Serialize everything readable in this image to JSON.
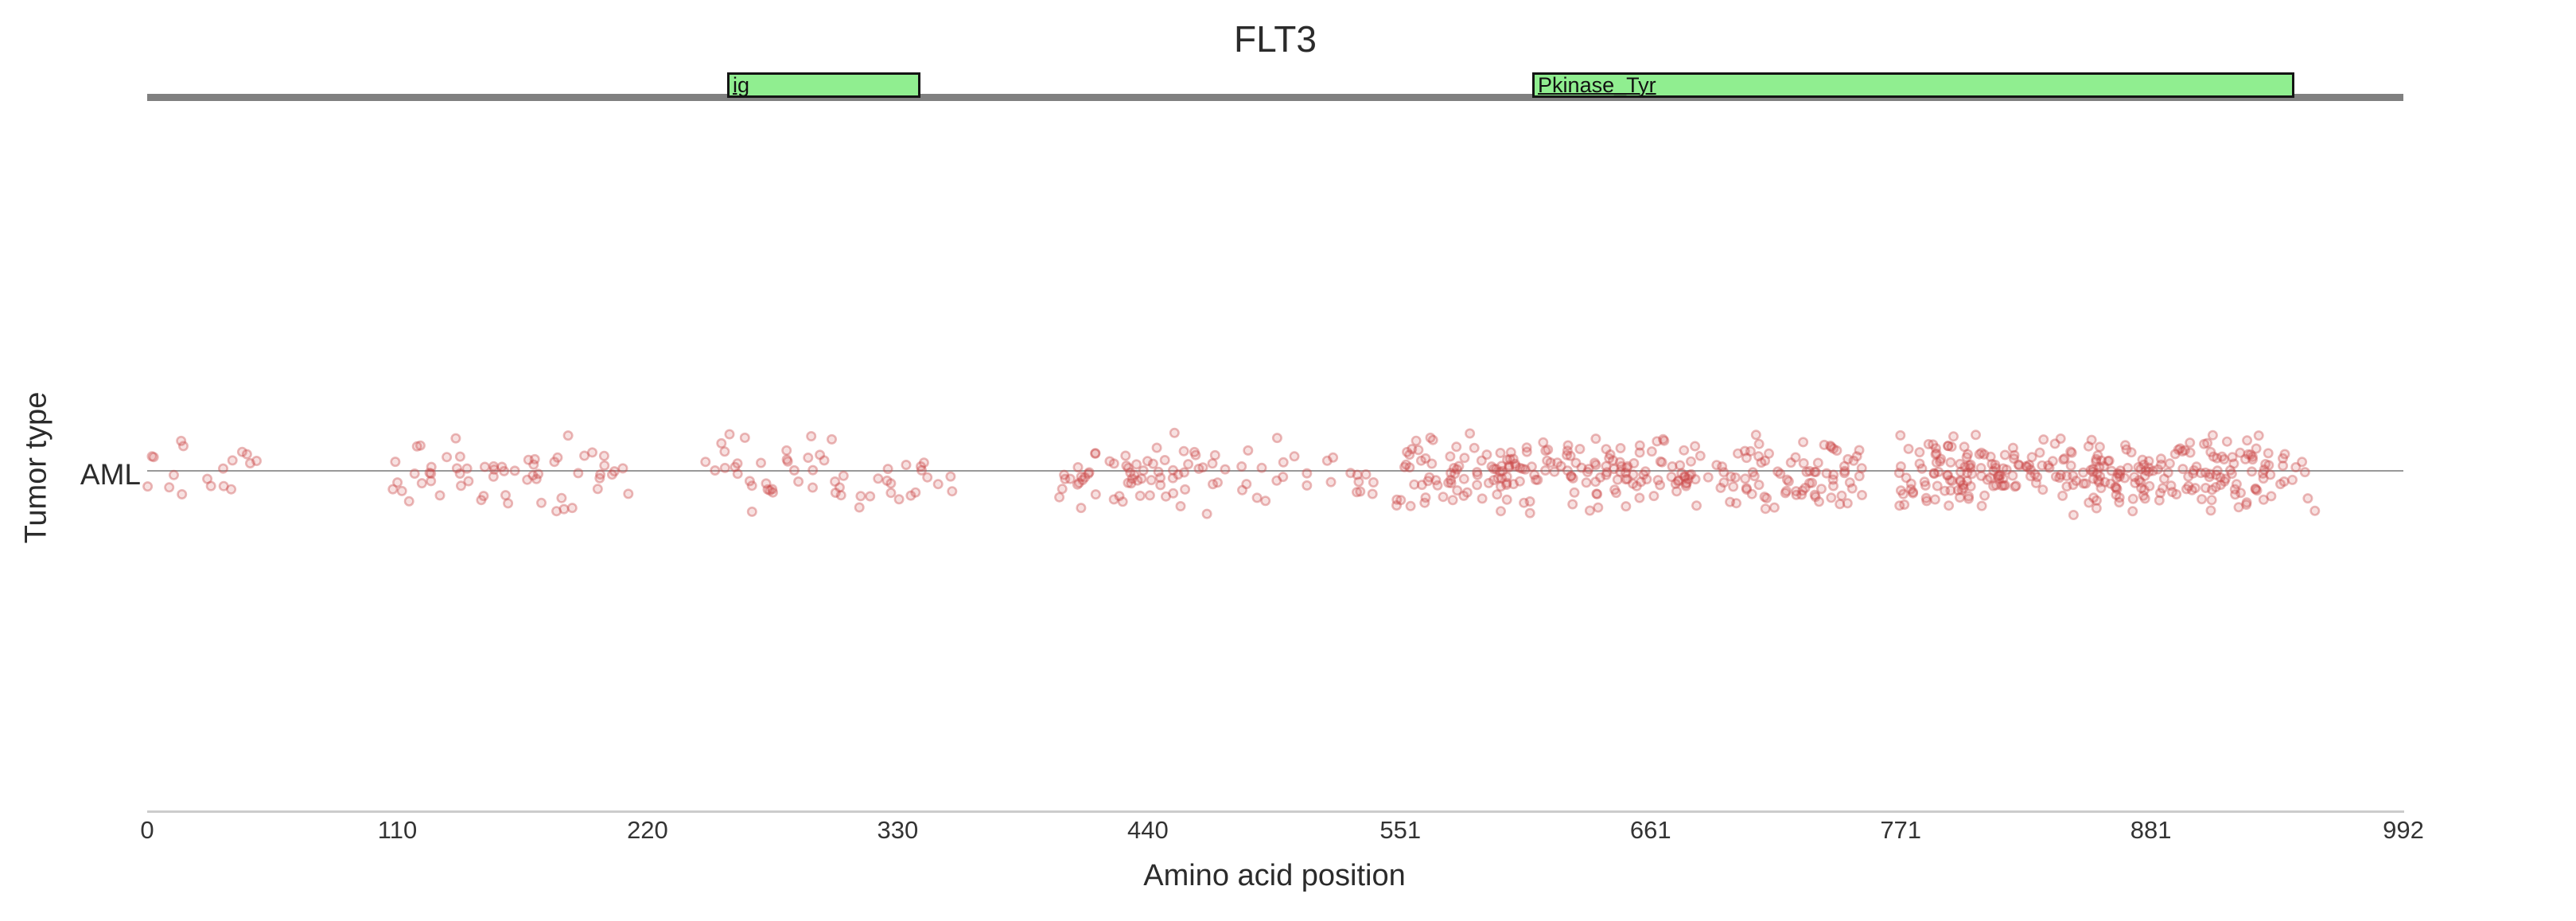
{
  "figure": {
    "title": "FLT3",
    "x_axis_label": "Amino acid position",
    "y_axis_label": "Tumor type",
    "row_label": "AML"
  },
  "chart_data": {
    "type": "scatter",
    "subtype": "jittered-strip-mutation-plot",
    "title": "FLT3",
    "xlabel": "Amino acid position",
    "ylabel": "Tumor type",
    "categories": [
      "AML"
    ],
    "xlim": [
      0,
      992
    ],
    "xticks": [
      0,
      110,
      220,
      330,
      440,
      551,
      661,
      771,
      881,
      992
    ],
    "grid": false,
    "legend": false,
    "protein_track": {
      "gene": "FLT3",
      "length_aa": 992,
      "domains": [
        {
          "name": "ig",
          "start_aa": 255,
          "end_aa": 340
        },
        {
          "name": "Pkinase_Tyr",
          "start_aa": 609,
          "end_aa": 944
        }
      ]
    },
    "series": [
      {
        "name": "AML",
        "marker": "translucent red open circle, vertical jitter",
        "clusters": [
          {
            "aa_start": 0,
            "aa_end": 56,
            "count": 18,
            "density": "sparse"
          },
          {
            "aa_start": 107,
            "aa_end": 212,
            "count": 60,
            "density": "moderate"
          },
          {
            "aa_start": 243,
            "aa_end": 355,
            "count": 55,
            "density": "moderate"
          },
          {
            "aa_start": 400,
            "aa_end": 467,
            "count": 60,
            "density": "moderate-dense"
          },
          {
            "aa_start": 467,
            "aa_end": 540,
            "count": 30,
            "density": "sparse"
          },
          {
            "aa_start": 549,
            "aa_end": 754,
            "count": 270,
            "density": "very dense"
          },
          {
            "aa_start": 770,
            "aa_end": 929,
            "count": 280,
            "density": "very dense"
          },
          {
            "aa_start": 929,
            "aa_end": 957,
            "count": 20,
            "density": "tapering"
          }
        ]
      }
    ]
  },
  "colors": {
    "accent_point": "#CB4747",
    "domain_fill": "#90EE90",
    "domain_stroke": "#141414",
    "backbone": "#808080",
    "row_line": "#999999",
    "axis_line": "#CCCCCC",
    "text": "#2B2B2B"
  }
}
